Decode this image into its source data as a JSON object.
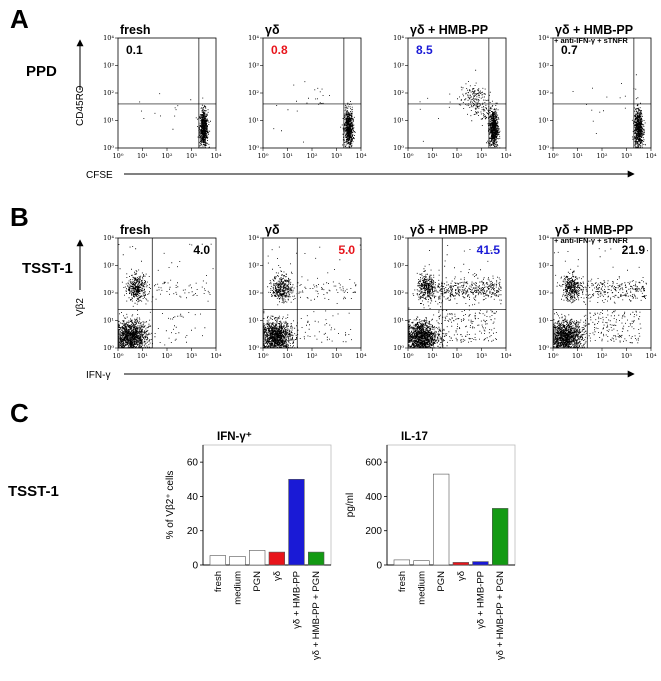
{
  "figure": {
    "panel_a_letter": "A",
    "panel_b_letter": "B",
    "panel_c_letter": "C",
    "panel_a_row_label": "PPD",
    "panel_b_row_label": "TSST-1",
    "panel_c_row_label": "TSST-1",
    "panel_a_xlabel": "CFSE",
    "panel_a_ylabel": "CD45RO",
    "panel_b_xlabel": "IFN-γ",
    "panel_b_ylabel": "Vβ2"
  },
  "colors": {
    "black": "#000000",
    "red": "#e8141b",
    "blue": "#1a1ad6",
    "green": "#139a13"
  },
  "chart_data": [
    {
      "type": "scatter",
      "panel": "A",
      "xscale": "log",
      "yscale": "log",
      "xlim": [
        1,
        10000
      ],
      "ylim": [
        1,
        10000
      ],
      "xticks": [
        "10⁰",
        "10¹",
        "10²",
        "10³",
        "10⁴"
      ],
      "yticks": [
        "10⁰",
        "10¹",
        "10²",
        "10³",
        "10⁴"
      ],
      "xlabel": "CFSE",
      "ylabel": "CD45RO",
      "quadrant_gate": {
        "x": 2000,
        "y": 40
      },
      "plots": [
        {
          "title": "fresh",
          "subtitle": "",
          "value": "0.1",
          "value_color": "#000000"
        },
        {
          "title": "γδ",
          "subtitle": "",
          "value": "0.8",
          "value_color": "#e8141b"
        },
        {
          "title": "γδ + HMB-PP",
          "subtitle": "",
          "value": "8.5",
          "value_color": "#1a1ad6"
        },
        {
          "title": "γδ + HMB-PP",
          "subtitle": "+ anti-IFN-γ + sTNFR",
          "value": "0.7",
          "value_color": "#000000"
        }
      ]
    },
    {
      "type": "scatter",
      "panel": "B",
      "xscale": "log",
      "yscale": "log",
      "xlim": [
        1,
        10000
      ],
      "ylim": [
        1,
        10000
      ],
      "xticks": [
        "10⁰",
        "10¹",
        "10²",
        "10³",
        "10⁴"
      ],
      "yticks": [
        "10⁰",
        "10¹",
        "10²",
        "10³",
        "10⁴"
      ],
      "xlabel": "IFN-γ",
      "ylabel": "Vβ2",
      "quadrant_gate": {
        "x": 25,
        "y": 25
      },
      "plots": [
        {
          "title": "fresh",
          "subtitle": "",
          "value": "4.0",
          "value_color": "#000000"
        },
        {
          "title": "γδ",
          "subtitle": "",
          "value": "5.0",
          "value_color": "#e8141b"
        },
        {
          "title": "γδ + HMB-PP",
          "subtitle": "",
          "value": "41.5",
          "value_color": "#1a1ad6"
        },
        {
          "title": "γδ + HMB-PP",
          "subtitle": "+ anti-IFN-γ + sTNFR",
          "value": "21.9",
          "value_color": "#000000"
        }
      ]
    },
    {
      "type": "bar",
      "panel": "C",
      "title": "IFN-γ⁺",
      "ylabel": "% of Vβ2⁺ cells",
      "ylim": [
        0,
        70
      ],
      "yticks": [
        "0",
        "20",
        "40",
        "60"
      ],
      "categories": [
        "fresh",
        "medium",
        "PGN",
        "γδ",
        "γδ + HMB-PP",
        "γδ + HMB-PP + PGN"
      ],
      "values": [
        5.5,
        5,
        8.5,
        7.5,
        50,
        7.5
      ],
      "colors": [
        "#ffffff",
        "#ffffff",
        "#ffffff",
        "#e8141b",
        "#1a1ad6",
        "#139a13"
      ]
    },
    {
      "type": "bar",
      "panel": "C",
      "title": "IL-17",
      "ylabel": "pg/ml",
      "ylim": [
        0,
        700
      ],
      "yticks": [
        "0",
        "200",
        "400",
        "600"
      ],
      "categories": [
        "fresh",
        "medium",
        "PGN",
        "γδ",
        "γδ + HMB-PP",
        "γδ + HMB-PP + PGN"
      ],
      "values": [
        30,
        25,
        530,
        15,
        20,
        330
      ],
      "colors": [
        "#ffffff",
        "#ffffff",
        "#ffffff",
        "#e8141b",
        "#1a1ad6",
        "#139a13"
      ]
    }
  ]
}
